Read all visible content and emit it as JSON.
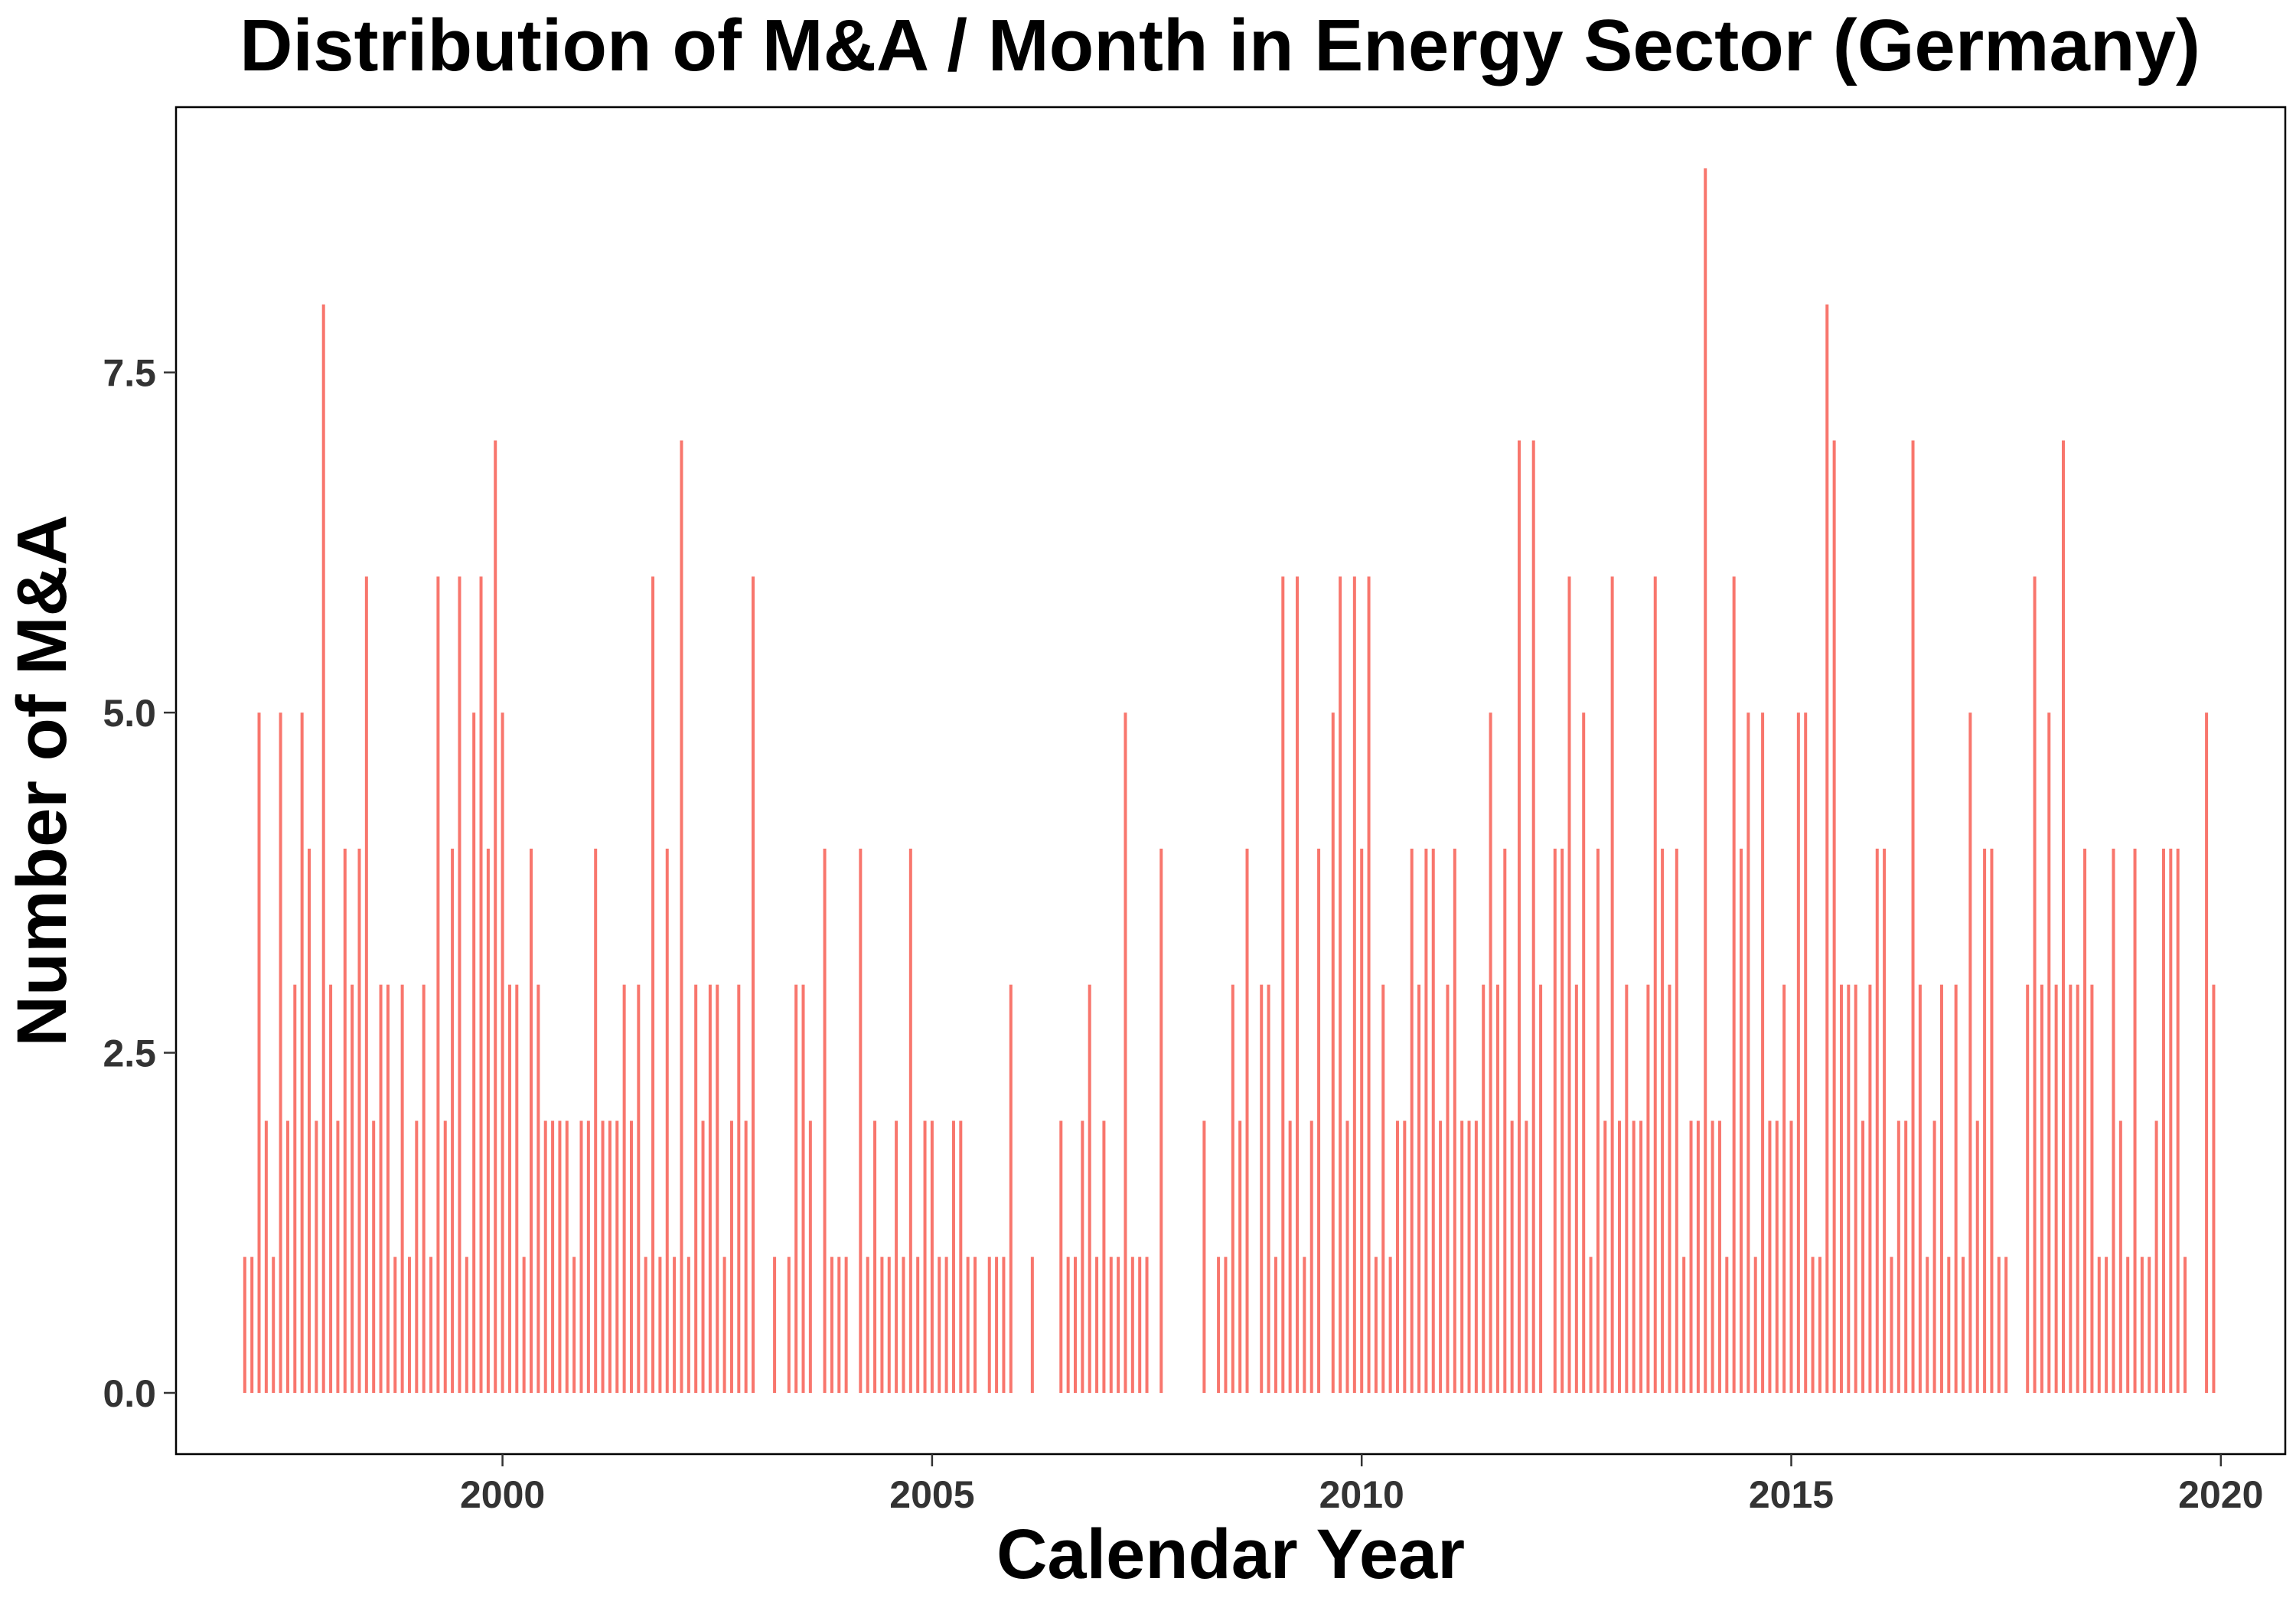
{
  "chart_data": {
    "type": "bar",
    "title": "Distribution of M&A / Month in Energy Sector (Germany)",
    "xlabel": "Calendar Year",
    "ylabel": "Number of M&A",
    "xlim": [
      1996.2,
      2020.75
    ],
    "ylim": [
      -0.45,
      9.45
    ],
    "x_ticks": [
      2000,
      2005,
      2010,
      2015,
      2020
    ],
    "y_ticks": [
      0.0,
      2.5,
      5.0,
      7.5
    ],
    "x_tick_labels": [
      "2000",
      "2005",
      "2010",
      "2015",
      "2020"
    ],
    "y_tick_labels": [
      "0.0",
      "2.5",
      "5.0",
      "7.5"
    ],
    "grid": false,
    "bar_color": "#F8766D",
    "series": [
      {
        "x_start": 1997.0,
        "x_step": 0.0833333333,
        "values": [
          1,
          1,
          5,
          2,
          1,
          5,
          2,
          3,
          5,
          4,
          2,
          8,
          3,
          2,
          4,
          3,
          4,
          6,
          2,
          3,
          3,
          1,
          3,
          1,
          2,
          3,
          1,
          6,
          2,
          4,
          6,
          1,
          5,
          6,
          4,
          7,
          5,
          3,
          3,
          1,
          4,
          3,
          2,
          2,
          2,
          2,
          1,
          2,
          2,
          4,
          2,
          2,
          2,
          3,
          2,
          3,
          1,
          6,
          1,
          4,
          1,
          7,
          1,
          3,
          2,
          3,
          3,
          1,
          2,
          3,
          2,
          6,
          0,
          0,
          1,
          0,
          1,
          3,
          3,
          2,
          0,
          4,
          1,
          1,
          1,
          0,
          4,
          1,
          2,
          1,
          1,
          2,
          1,
          4,
          1,
          2,
          2,
          1,
          1,
          2,
          2,
          1,
          1,
          0,
          1,
          1,
          1,
          3,
          0,
          0,
          1,
          0,
          0,
          0,
          2,
          1,
          1,
          2,
          3,
          1,
          2,
          1,
          1,
          5,
          1,
          1,
          1,
          0,
          4,
          0,
          0,
          0,
          0,
          0,
          2,
          0,
          1,
          1,
          3,
          2,
          4,
          0,
          3,
          3,
          1,
          6,
          2,
          6,
          1,
          2,
          4,
          0,
          5,
          6,
          2,
          6,
          4,
          6,
          1,
          3,
          1,
          2,
          2,
          4,
          3,
          4,
          4,
          2,
          3,
          4,
          2,
          2,
          2,
          3,
          5,
          3,
          4,
          2,
          7,
          2,
          7,
          3,
          0,
          4,
          4,
          6,
          3,
          5,
          1,
          4,
          2,
          6,
          2,
          3,
          2,
          2,
          3,
          6,
          4,
          3,
          4,
          1,
          2,
          2,
          9,
          2,
          2,
          1,
          6,
          4,
          5,
          1,
          5,
          2,
          2,
          3,
          2,
          5,
          5,
          1,
          1,
          8,
          7,
          3,
          3,
          3,
          2,
          3,
          4,
          4,
          1,
          2,
          2,
          7,
          3,
          1,
          2,
          3,
          1,
          3,
          1,
          5,
          2,
          4,
          4,
          1,
          1,
          0,
          0,
          3,
          6,
          3,
          5,
          3,
          7,
          3,
          3,
          4,
          3,
          1,
          1,
          4,
          2,
          1,
          4,
          1,
          1,
          2,
          4,
          4,
          4,
          1,
          0,
          0,
          5,
          3
        ]
      }
    ]
  }
}
